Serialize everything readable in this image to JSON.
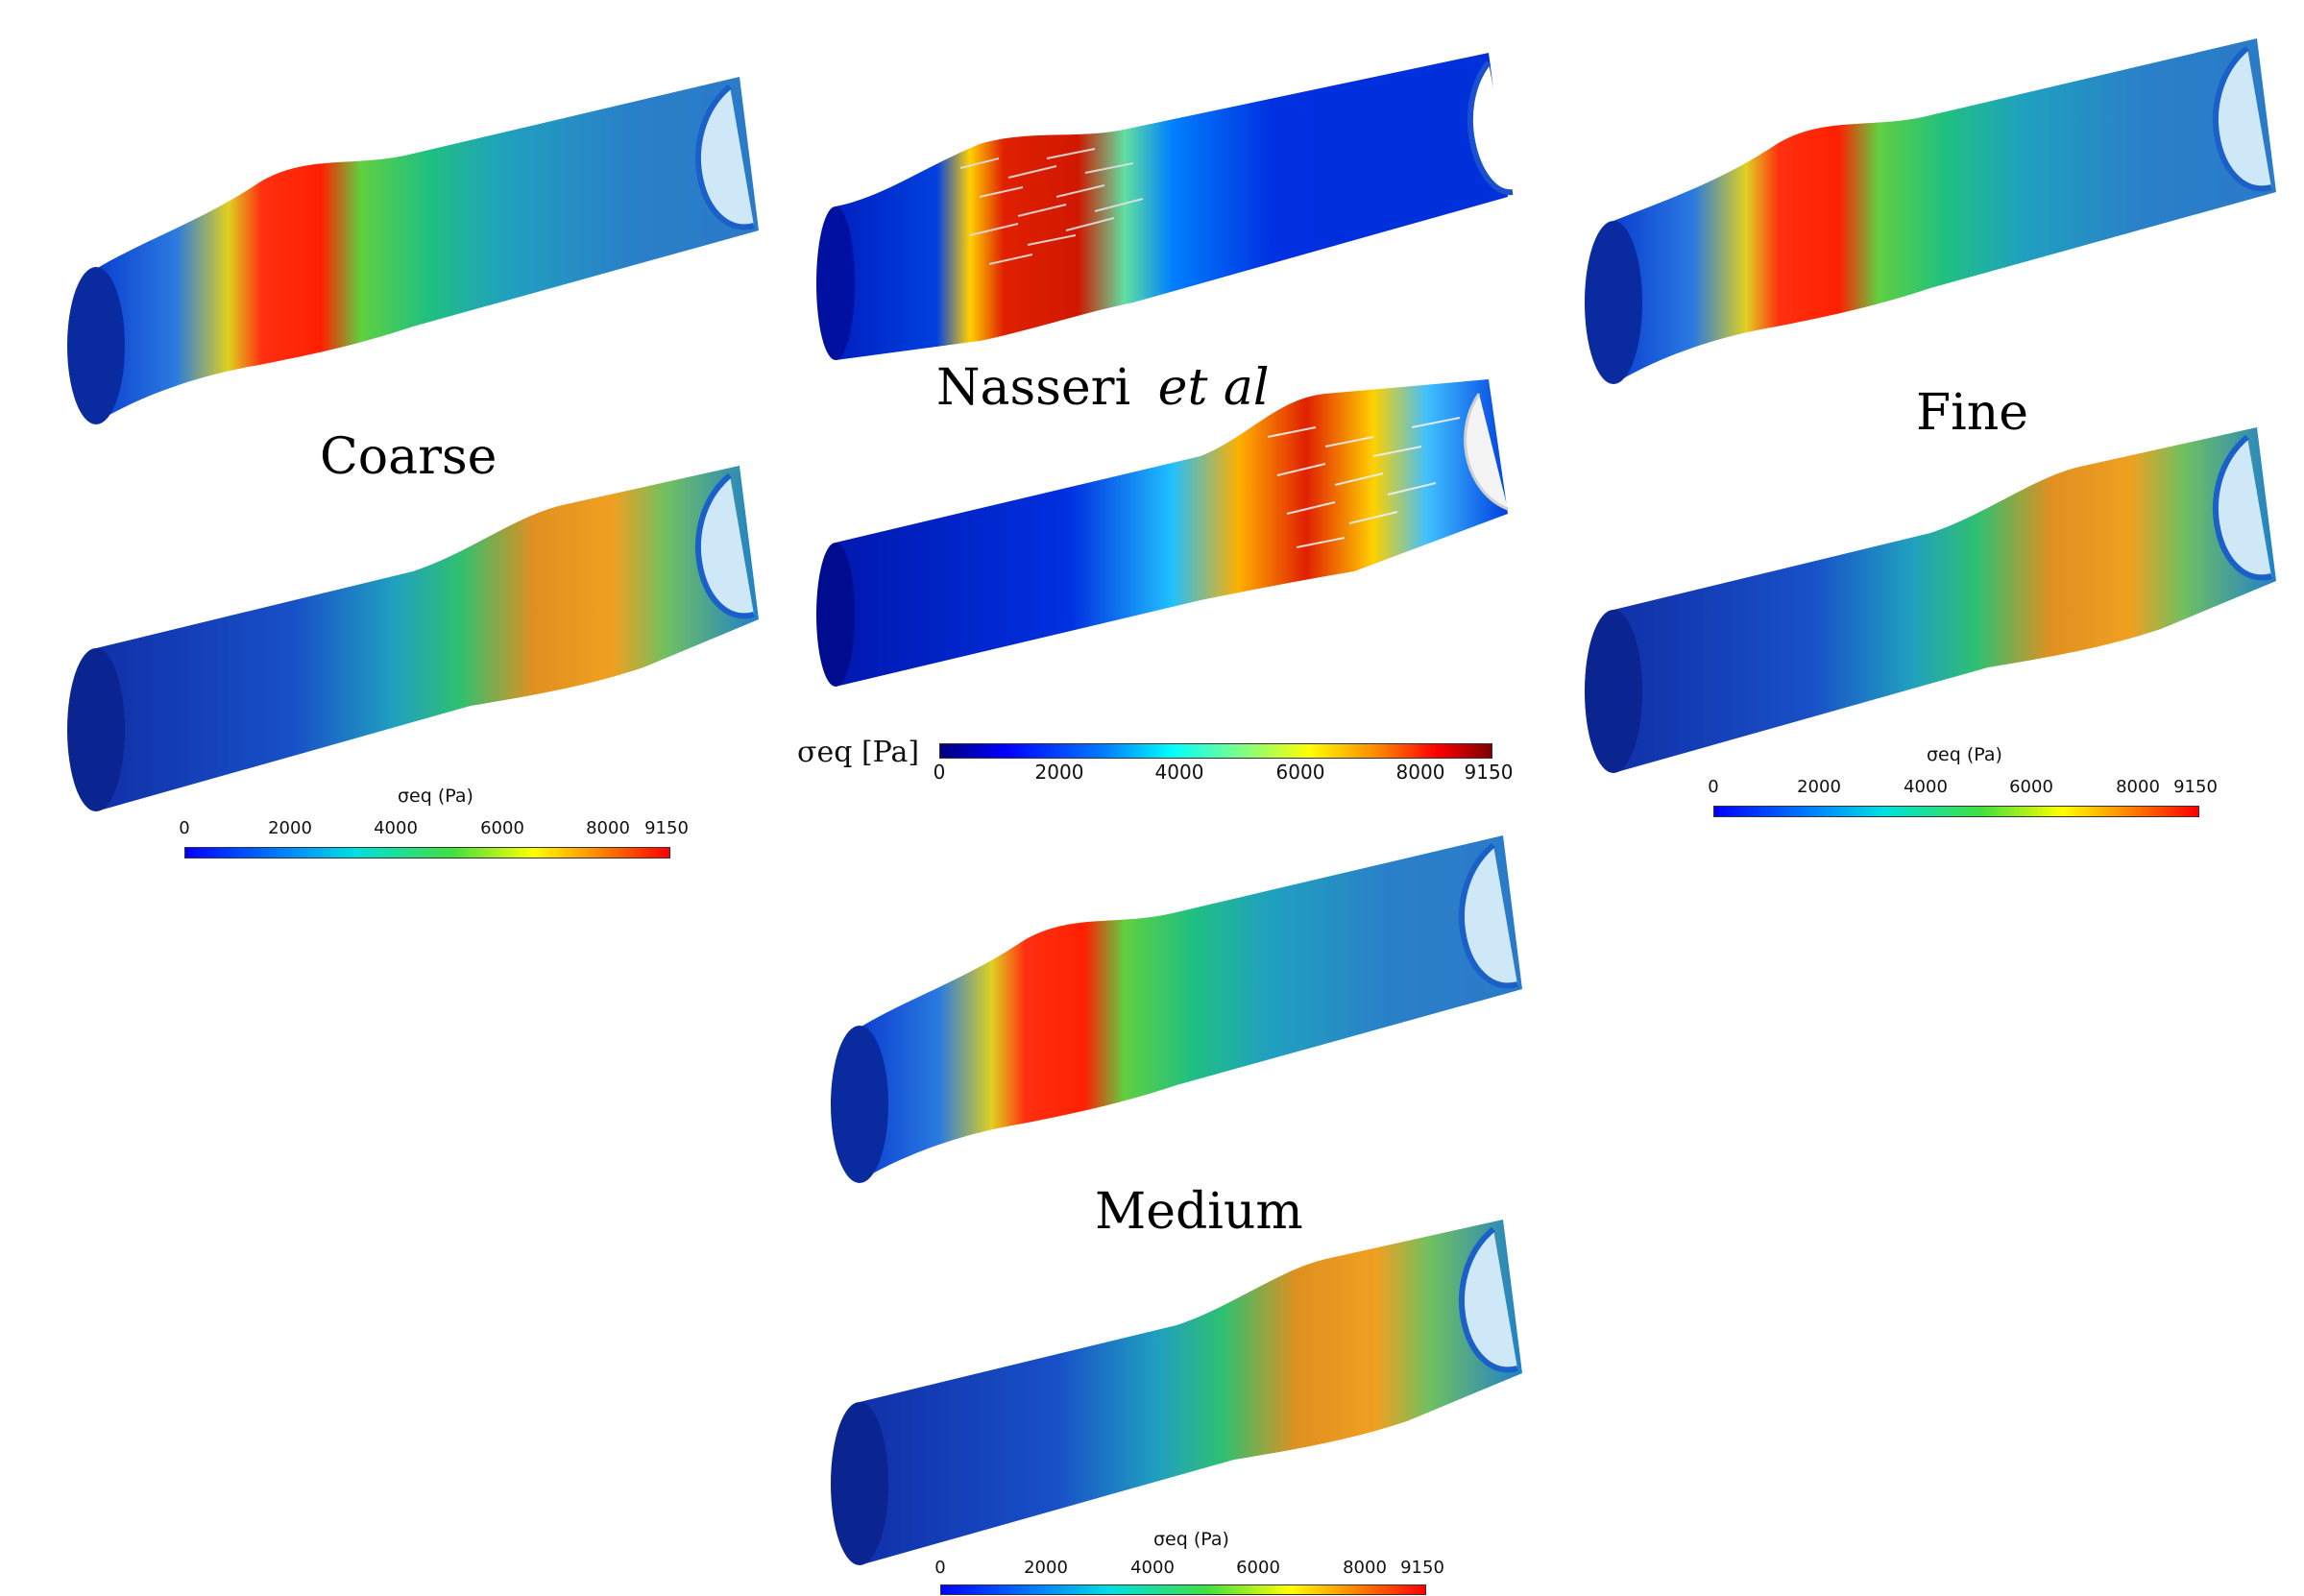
{
  "panels": {
    "coarse": {
      "label": "Coarse"
    },
    "nasseri": {
      "label_main": "Nasseri",
      "label_italic": "et  al"
    },
    "fine": {
      "label": "Fine"
    },
    "medium": {
      "label": "Medium"
    }
  },
  "colorbars": {
    "coarse": {
      "title": "σeq (Pa)",
      "ticks": [
        "0",
        "2000",
        "4000",
        "6000",
        "8000",
        "9150"
      ]
    },
    "nasseri": {
      "title": "σeq [Pa]",
      "ticks": [
        "0",
        "2000",
        "4000",
        "6000",
        "8000",
        "9150"
      ]
    },
    "fine": {
      "title": "σeq (Pa)",
      "ticks": [
        "0",
        "2000",
        "4000",
        "6000",
        "8000",
        "9150"
      ]
    },
    "medium": {
      "title": "σeq (Pa)",
      "ticks": [
        "0",
        "2000",
        "4000",
        "6000",
        "8000",
        "9150"
      ]
    }
  },
  "colormap": [
    "#00007f",
    "#0000ff",
    "#0080ff",
    "#00ffff",
    "#80ff80",
    "#ffff00",
    "#ff8000",
    "#ff0000",
    "#7f0000"
  ],
  "range": [
    0,
    9150
  ]
}
